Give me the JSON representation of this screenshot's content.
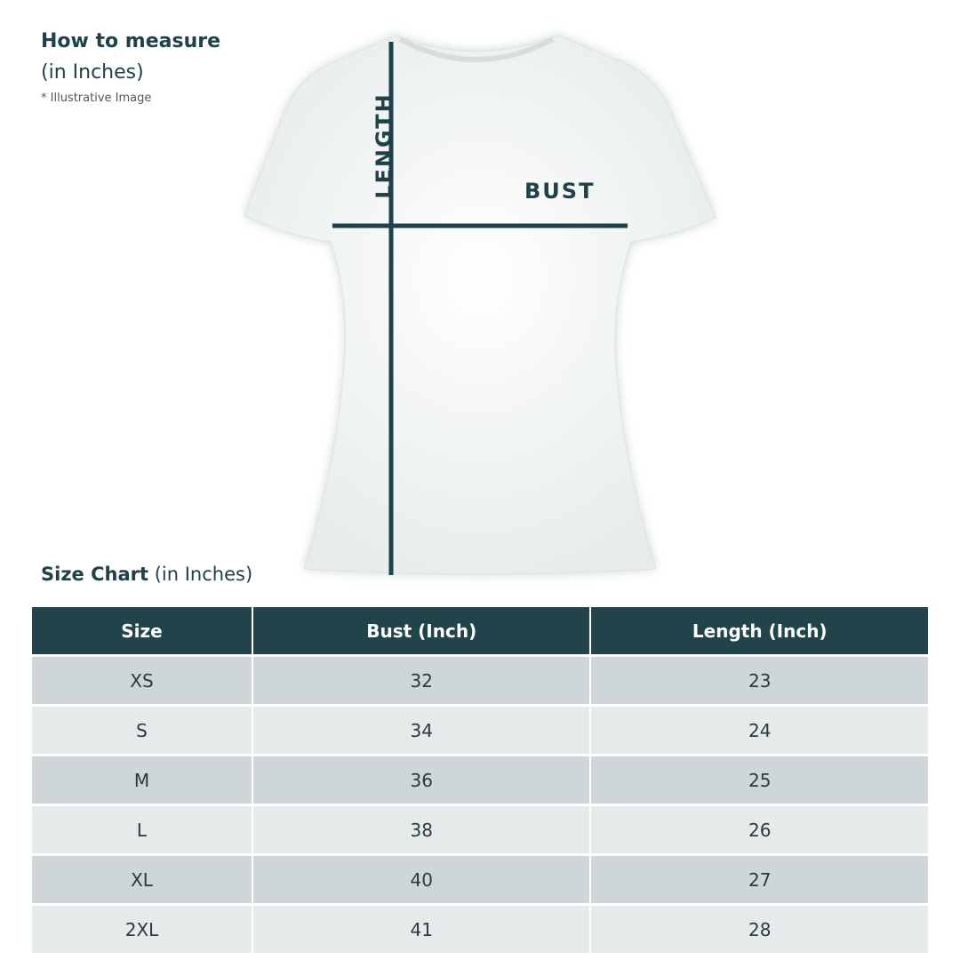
{
  "measure": {
    "title": "How to measure",
    "unit": "(in Inches)",
    "note": "* Illustrative Image"
  },
  "diagram": {
    "length_label": "LENGTH",
    "bust_label": "BUST",
    "line_color": "#1f4147"
  },
  "size_chart": {
    "title": "Size Chart",
    "unit": "(in Inches)",
    "headers": [
      "Size",
      "Bust (Inch)",
      "Length (Inch)"
    ],
    "rows": [
      [
        "XS",
        "32",
        "23"
      ],
      [
        "S",
        "34",
        "24"
      ],
      [
        "M",
        "36",
        "25"
      ],
      [
        "L",
        "38",
        "26"
      ],
      [
        "XL",
        "40",
        "27"
      ],
      [
        "2XL",
        "41",
        "28"
      ]
    ],
    "header_color": "#21444a"
  }
}
